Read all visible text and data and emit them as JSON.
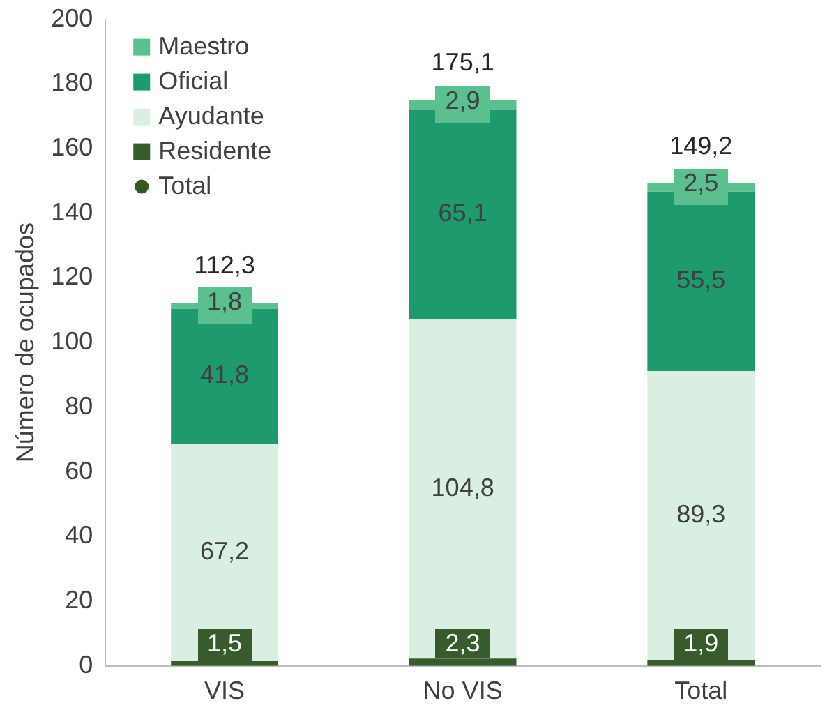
{
  "chart_data": {
    "type": "bar",
    "ylabel": "Número de ocupados",
    "categories": [
      "VIS",
      "No VIS",
      "Total"
    ],
    "stacked": true,
    "ylim": [
      0,
      200
    ],
    "yticks": [
      0,
      20,
      40,
      60,
      80,
      100,
      120,
      140,
      160,
      180,
      200
    ],
    "grid": false,
    "legend": "top left",
    "series": [
      {
        "name": "Residente",
        "color": "#375b2c",
        "values": [
          1.5,
          2.3,
          1.9
        ],
        "value_labels": [
          "1,5",
          "2,3",
          "1,9"
        ]
      },
      {
        "name": "Ayudante",
        "color": "#d8efe1",
        "values": [
          67.2,
          104.8,
          89.3
        ],
        "value_labels": [
          "67,2",
          "104,8",
          "89,3"
        ]
      },
      {
        "name": "Oficial",
        "color": "#1f9a6c",
        "values": [
          41.8,
          65.1,
          55.5
        ],
        "value_labels": [
          "41,8",
          "65,1",
          "55,5"
        ]
      },
      {
        "name": "Maestro",
        "color": "#5cbf8f",
        "values": [
          1.8,
          2.9,
          2.5
        ],
        "value_labels": [
          "1,8",
          "2,9",
          "2,5"
        ]
      },
      {
        "name": "Total",
        "type": "scatter",
        "marker": "circle",
        "color": "#375623",
        "values": [
          null,
          null,
          null
        ]
      }
    ],
    "totals": [
      "112,3",
      "175,1",
      "149,2"
    ]
  }
}
